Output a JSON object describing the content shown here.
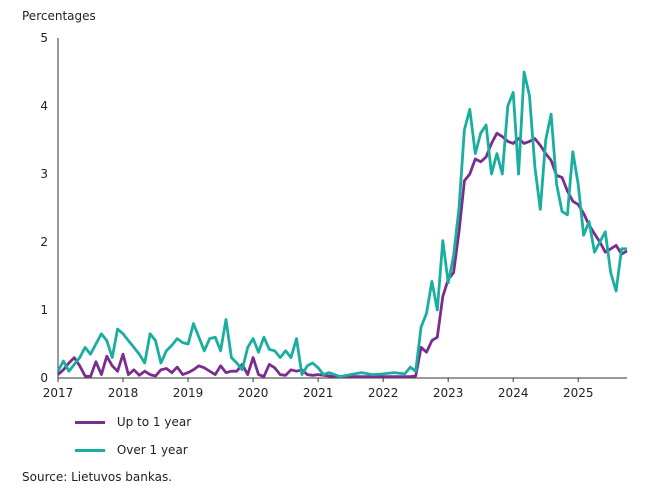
{
  "chart_data": {
    "type": "line",
    "ylabel": "Percentages",
    "ylim": [
      0,
      5
    ],
    "yticks": [
      "0",
      "1",
      "2",
      "3",
      "4",
      "5"
    ],
    "xlim": [
      2017.0,
      2025.75
    ],
    "xticks": [
      "2017",
      "2018",
      "2019",
      "2020",
      "2021",
      "2022",
      "2023",
      "2024",
      "2025"
    ],
    "grid": false,
    "legend_position": "bottom-left",
    "series": [
      {
        "name": "Up to 1 year",
        "color": "#7b2d8e",
        "x": [
          2017.0,
          2017.083,
          2017.167,
          2017.25,
          2017.333,
          2017.417,
          2017.5,
          2017.583,
          2017.667,
          2017.75,
          2017.833,
          2017.917,
          2018.0,
          2018.083,
          2018.167,
          2018.25,
          2018.333,
          2018.417,
          2018.5,
          2018.583,
          2018.667,
          2018.75,
          2018.833,
          2018.917,
          2019.0,
          2019.083,
          2019.167,
          2019.25,
          2019.333,
          2019.417,
          2019.5,
          2019.583,
          2019.667,
          2019.75,
          2019.833,
          2019.917,
          2020.0,
          2020.083,
          2020.167,
          2020.25,
          2020.333,
          2020.417,
          2020.5,
          2020.583,
          2020.667,
          2020.75,
          2020.833,
          2020.917,
          2021.0,
          2021.25,
          2021.5,
          2021.75,
          2022.0,
          2022.25,
          2022.417,
          2022.5,
          2022.583,
          2022.667,
          2022.75,
          2022.833,
          2022.917,
          2023.0,
          2023.083,
          2023.167,
          2023.25,
          2023.333,
          2023.417,
          2023.5,
          2023.583,
          2023.667,
          2023.75,
          2023.833,
          2023.917,
          2024.0,
          2024.083,
          2024.167,
          2024.25,
          2024.333,
          2024.417,
          2024.5,
          2024.583,
          2024.667,
          2024.75,
          2024.833,
          2024.917,
          2025.0,
          2025.083,
          2025.167,
          2025.25,
          2025.333,
          2025.417,
          2025.5,
          2025.583,
          2025.667,
          2025.75
        ],
        "values": [
          0.05,
          0.12,
          0.22,
          0.3,
          0.18,
          0.03,
          0.02,
          0.24,
          0.05,
          0.32,
          0.18,
          0.1,
          0.35,
          0.05,
          0.12,
          0.04,
          0.1,
          0.05,
          0.03,
          0.12,
          0.14,
          0.08,
          0.16,
          0.05,
          0.08,
          0.12,
          0.18,
          0.15,
          0.1,
          0.05,
          0.18,
          0.08,
          0.1,
          0.1,
          0.2,
          0.05,
          0.3,
          0.05,
          0.02,
          0.2,
          0.15,
          0.05,
          0.04,
          0.12,
          0.1,
          0.12,
          0.05,
          0.04,
          0.05,
          0.02,
          0.02,
          0.02,
          0.02,
          0.02,
          0.02,
          0.03,
          0.45,
          0.38,
          0.55,
          0.6,
          1.2,
          1.45,
          1.55,
          2.15,
          2.9,
          3.0,
          3.22,
          3.18,
          3.25,
          3.45,
          3.6,
          3.55,
          3.48,
          3.45,
          3.52,
          3.45,
          3.48,
          3.52,
          3.42,
          3.3,
          3.2,
          2.98,
          2.95,
          2.75,
          2.6,
          2.55,
          2.42,
          2.25,
          2.12,
          2.0,
          1.85,
          1.9,
          1.95,
          1.82,
          1.87
        ]
      },
      {
        "name": "Over 1 year",
        "color": "#1aae9f",
        "x": [
          2017.0,
          2017.083,
          2017.167,
          2017.25,
          2017.333,
          2017.417,
          2017.5,
          2017.583,
          2017.667,
          2017.75,
          2017.833,
          2017.917,
          2018.0,
          2018.083,
          2018.167,
          2018.25,
          2018.333,
          2018.417,
          2018.5,
          2018.583,
          2018.667,
          2018.75,
          2018.833,
          2018.917,
          2019.0,
          2019.083,
          2019.167,
          2019.25,
          2019.333,
          2019.417,
          2019.5,
          2019.583,
          2019.667,
          2019.75,
          2019.833,
          2019.917,
          2020.0,
          2020.083,
          2020.167,
          2020.25,
          2020.333,
          2020.417,
          2020.5,
          2020.583,
          2020.667,
          2020.75,
          2020.833,
          2020.917,
          2021.0,
          2021.083,
          2021.167,
          2021.25,
          2021.333,
          2021.5,
          2021.667,
          2021.833,
          2022.0,
          2022.167,
          2022.333,
          2022.417,
          2022.5,
          2022.583,
          2022.667,
          2022.75,
          2022.833,
          2022.917,
          2023.0,
          2023.083,
          2023.167,
          2023.25,
          2023.333,
          2023.417,
          2023.5,
          2023.583,
          2023.667,
          2023.75,
          2023.833,
          2023.917,
          2024.0,
          2024.083,
          2024.167,
          2024.25,
          2024.333,
          2024.417,
          2024.5,
          2024.583,
          2024.667,
          2024.75,
          2024.833,
          2024.917,
          2025.0,
          2025.083,
          2025.167,
          2025.25,
          2025.333,
          2025.417,
          2025.5,
          2025.583,
          2025.667,
          2025.75
        ],
        "values": [
          0.1,
          0.25,
          0.1,
          0.2,
          0.3,
          0.45,
          0.35,
          0.5,
          0.65,
          0.55,
          0.3,
          0.72,
          0.65,
          0.55,
          0.45,
          0.35,
          0.22,
          0.65,
          0.55,
          0.22,
          0.4,
          0.48,
          0.58,
          0.52,
          0.5,
          0.8,
          0.6,
          0.4,
          0.58,
          0.6,
          0.4,
          0.86,
          0.3,
          0.22,
          0.12,
          0.45,
          0.58,
          0.38,
          0.6,
          0.42,
          0.4,
          0.3,
          0.4,
          0.3,
          0.58,
          0.05,
          0.18,
          0.22,
          0.15,
          0.05,
          0.08,
          0.05,
          0.02,
          0.05,
          0.08,
          0.05,
          0.06,
          0.08,
          0.06,
          0.16,
          0.1,
          0.75,
          0.95,
          1.42,
          1.0,
          2.02,
          1.4,
          1.8,
          2.5,
          3.65,
          3.95,
          3.3,
          3.6,
          3.72,
          3.0,
          3.3,
          3.0,
          4.0,
          4.2,
          3.0,
          4.5,
          4.15,
          3.1,
          2.48,
          3.5,
          3.88,
          2.85,
          2.45,
          2.4,
          3.33,
          2.85,
          2.1,
          2.3,
          1.85,
          2.0,
          2.15,
          1.55,
          1.28,
          1.9,
          1.9
        ]
      }
    ]
  },
  "source": "Source: Lietuvos bankas."
}
